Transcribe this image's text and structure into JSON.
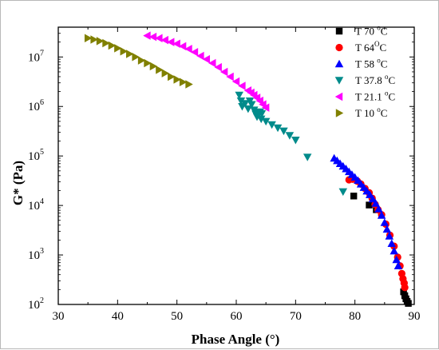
{
  "chart_data": {
    "type": "scatter",
    "xlabel": "Phase Angle (°)",
    "ylabel": "G* (Pa)",
    "xlim": [
      30,
      90
    ],
    "ylim": [
      100,
      40000000
    ],
    "yscale": "log",
    "xticks": [
      "30",
      "40",
      "50",
      "60",
      "70",
      "80",
      "90"
    ],
    "yticks": [
      {
        "base": "10",
        "exp": "2"
      },
      {
        "base": "10",
        "exp": "3"
      },
      {
        "base": "10",
        "exp": "4"
      },
      {
        "base": "10",
        "exp": "5"
      },
      {
        "base": "10",
        "exp": "6"
      },
      {
        "base": "10",
        "exp": "7"
      }
    ],
    "legend_position": "top-right",
    "grid": false,
    "series": [
      {
        "name": "T 70 °C",
        "legend": {
          "pre": "T 70 ",
          "sup": "o",
          "post": "C"
        },
        "marker": "square",
        "color": "#000000",
        "points": [
          [
            79.8,
            15500
          ],
          [
            82.4,
            10200
          ],
          [
            83.6,
            8200
          ],
          [
            88.2,
            180
          ],
          [
            88.4,
            150
          ],
          [
            88.6,
            130
          ],
          [
            88.8,
            115
          ],
          [
            89.0,
            105
          ]
        ]
      },
      {
        "name": "T 64°C",
        "legend": {
          "pre": "T 64",
          "sup": "O",
          "post": "C"
        },
        "marker": "circle",
        "color": "#ff0000",
        "points": [
          [
            79.0,
            33000
          ],
          [
            79.6,
            34000
          ],
          [
            80.4,
            31000
          ],
          [
            81.0,
            27000
          ],
          [
            81.7,
            22000
          ],
          [
            82.4,
            18000
          ],
          [
            82.9,
            14000
          ],
          [
            83.4,
            10500
          ],
          [
            83.9,
            8200
          ],
          [
            84.5,
            6500
          ],
          [
            85.2,
            4200
          ],
          [
            85.9,
            2500
          ],
          [
            86.6,
            1500
          ],
          [
            87.2,
            900
          ],
          [
            87.6,
            600
          ],
          [
            87.9,
            420
          ],
          [
            88.1,
            330
          ],
          [
            88.3,
            270
          ],
          [
            88.4,
            220
          ]
        ]
      },
      {
        "name": "T 58 °C",
        "legend": {
          "pre": "T 58 ",
          "sup": "o",
          "post": "C"
        },
        "marker": "triangle-up",
        "color": "#0000ff",
        "points": [
          [
            76.5,
            90000
          ],
          [
            77.0,
            80000
          ],
          [
            77.5,
            70000
          ],
          [
            78.0,
            62000
          ],
          [
            78.5,
            55000
          ],
          [
            79.0,
            48000
          ],
          [
            79.5,
            42000
          ],
          [
            80.0,
            37000
          ],
          [
            80.5,
            32000
          ],
          [
            81.0,
            27000
          ],
          [
            81.5,
            23000
          ],
          [
            82.0,
            19500
          ],
          [
            82.5,
            16500
          ],
          [
            83.0,
            13500
          ],
          [
            83.5,
            11000
          ],
          [
            84.0,
            8500
          ],
          [
            84.5,
            6300
          ],
          [
            85.0,
            4500
          ],
          [
            85.4,
            3300
          ],
          [
            85.8,
            2400
          ],
          [
            86.2,
            1700
          ],
          [
            86.6,
            1200
          ],
          [
            87.0,
            800
          ],
          [
            87.3,
            600
          ]
        ]
      },
      {
        "name": "T 37.8 °C",
        "legend": {
          "pre": "T 37.8 ",
          "sup": "o",
          "post": "C"
        },
        "marker": "triangle-down",
        "color": "#008b8b",
        "points": [
          [
            60.5,
            1700000
          ],
          [
            60.8,
            1300000
          ],
          [
            61.0,
            1000000
          ],
          [
            61.5,
            1150000
          ],
          [
            62.0,
            900000
          ],
          [
            62.3,
            1300000
          ],
          [
            62.6,
            1100000
          ],
          [
            63.0,
            850000
          ],
          [
            63.3,
            700000
          ],
          [
            63.6,
            750000
          ],
          [
            64.0,
            780000
          ],
          [
            64.3,
            720000
          ],
          [
            63.5,
            620000
          ],
          [
            64.2,
            560000
          ],
          [
            65.0,
            500000
          ],
          [
            66.0,
            430000
          ],
          [
            67.0,
            370000
          ],
          [
            68.0,
            320000
          ],
          [
            69.0,
            260000
          ],
          [
            70.0,
            210000
          ],
          [
            72.0,
            95000
          ],
          [
            78.0,
            19000
          ]
        ]
      },
      {
        "name": "T 21.1 °C",
        "legend": {
          "pre": "T 21.1 ",
          "sup": "o",
          "post": "C"
        },
        "marker": "triangle-left",
        "color": "#ff00ff",
        "points": [
          [
            45.0,
            27000000
          ],
          [
            46.0,
            25500000
          ],
          [
            47.0,
            24000000
          ],
          [
            48.0,
            22000000
          ],
          [
            49.0,
            20000000
          ],
          [
            50.0,
            18500000
          ],
          [
            51.0,
            16500000
          ],
          [
            52.0,
            14500000
          ],
          [
            53.0,
            12500000
          ],
          [
            54.0,
            10500000
          ],
          [
            55.0,
            9000000
          ],
          [
            56.0,
            7500000
          ],
          [
            57.0,
            6200000
          ],
          [
            58.0,
            5000000
          ],
          [
            59.0,
            4000000
          ],
          [
            60.0,
            3200000
          ],
          [
            61.0,
            2600000
          ],
          [
            62.0,
            2100000
          ],
          [
            62.5,
            1900000
          ],
          [
            63.0,
            1700000
          ],
          [
            63.5,
            1500000
          ],
          [
            64.0,
            1300000
          ],
          [
            64.5,
            1100000
          ],
          [
            65.0,
            950000
          ]
        ]
      },
      {
        "name": "T 10 °C",
        "legend": {
          "pre": "T 10 ",
          "sup": "o",
          "post": "C"
        },
        "marker": "triangle-right",
        "color": "#808000",
        "points": [
          [
            35.0,
            24000000
          ],
          [
            36.0,
            22500000
          ],
          [
            37.0,
            21000000
          ],
          [
            38.0,
            19000000
          ],
          [
            39.0,
            17000000
          ],
          [
            40.0,
            15000000
          ],
          [
            41.0,
            13000000
          ],
          [
            42.0,
            11500000
          ],
          [
            43.0,
            10000000
          ],
          [
            44.0,
            8500000
          ],
          [
            45.0,
            7500000
          ],
          [
            46.0,
            6500000
          ],
          [
            47.0,
            5500000
          ],
          [
            48.0,
            4700000
          ],
          [
            49.0,
            4000000
          ],
          [
            50.0,
            3500000
          ],
          [
            51.0,
            3100000
          ],
          [
            52.0,
            2800000
          ]
        ]
      }
    ]
  }
}
